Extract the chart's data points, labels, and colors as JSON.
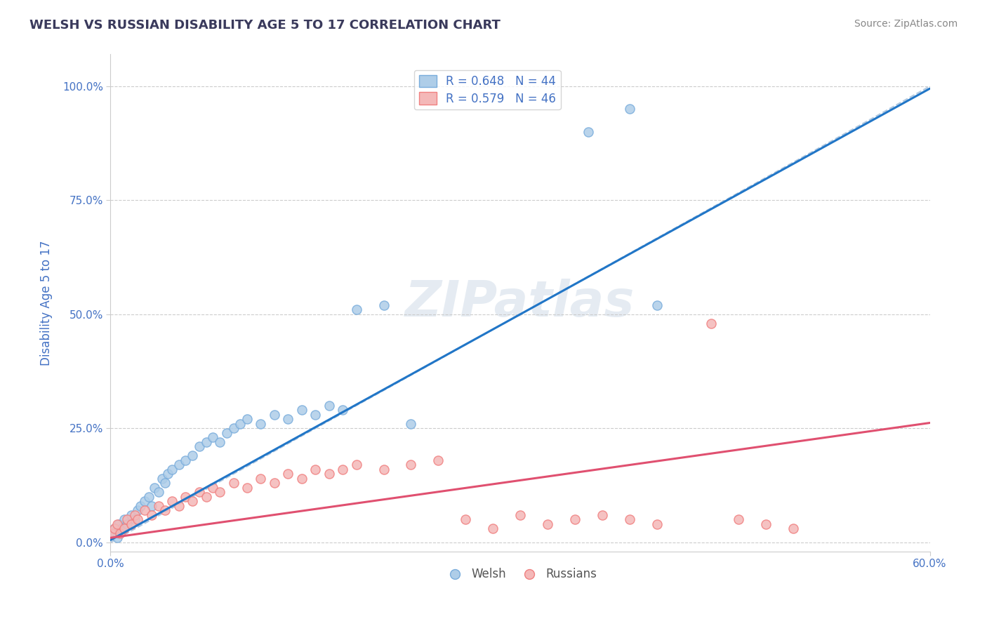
{
  "title": "WELSH VS RUSSIAN DISABILITY AGE 5 TO 17 CORRELATION CHART",
  "source": "Source: ZipAtlas.com",
  "ylabel": "Disability Age 5 to 17",
  "y_tick_labels": [
    "0.0%",
    "25.0%",
    "50.0%",
    "75.0%",
    "100.0%"
  ],
  "y_tick_values": [
    0,
    25,
    50,
    75,
    100
  ],
  "x_min": 0,
  "x_max": 60,
  "y_min": -2,
  "y_max": 107,
  "welsh_color": "#7aaddc",
  "welsh_fill": "#aecde8",
  "russian_color": "#f08080",
  "russian_fill": "#f4b8b8",
  "regression_welsh_color": "#2176c7",
  "regression_russian_color": "#e05070",
  "diagonal_color": "#b0c8e0",
  "text_color": "#4472c4",
  "legend_welsh_label": "R = 0.648   N = 44",
  "legend_russian_label": "R = 0.579   N = 46",
  "watermark": "ZIPatlas",
  "welsh_slope": 1.65,
  "welsh_intercept": 0.5,
  "russian_slope": 0.42,
  "russian_intercept": 1.0,
  "welsh_points_x": [
    0.2,
    0.3,
    0.5,
    0.6,
    0.8,
    1.0,
    1.2,
    1.5,
    1.8,
    2.0,
    2.2,
    2.5,
    2.8,
    3.0,
    3.2,
    3.5,
    3.8,
    4.0,
    4.2,
    4.5,
    5.0,
    5.5,
    6.0,
    6.5,
    7.0,
    7.5,
    8.0,
    8.5,
    9.0,
    9.5,
    10.0,
    11.0,
    12.0,
    13.0,
    14.0,
    15.0,
    16.0,
    17.0,
    18.0,
    20.0,
    22.0,
    35.0,
    38.0,
    40.0
  ],
  "welsh_points_y": [
    2,
    3,
    1,
    4,
    3,
    5,
    4,
    6,
    5,
    7,
    8,
    9,
    10,
    8,
    12,
    11,
    14,
    13,
    15,
    16,
    17,
    18,
    19,
    21,
    22,
    23,
    22,
    24,
    25,
    26,
    27,
    26,
    28,
    27,
    29,
    28,
    30,
    29,
    51,
    52,
    26,
    90,
    95,
    52
  ],
  "russian_points_x": [
    0.1,
    0.3,
    0.5,
    0.7,
    1.0,
    1.2,
    1.5,
    1.8,
    2.0,
    2.5,
    3.0,
    3.5,
    4.0,
    4.5,
    5.0,
    5.5,
    6.0,
    6.5,
    7.0,
    7.5,
    8.0,
    9.0,
    10.0,
    11.0,
    12.0,
    13.0,
    14.0,
    15.0,
    16.0,
    17.0,
    18.0,
    20.0,
    22.0,
    24.0,
    26.0,
    28.0,
    30.0,
    32.0,
    34.0,
    36.0,
    38.0,
    40.0,
    44.0,
    46.0,
    48.0,
    50.0
  ],
  "russian_points_y": [
    2,
    3,
    4,
    2,
    3,
    5,
    4,
    6,
    5,
    7,
    6,
    8,
    7,
    9,
    8,
    10,
    9,
    11,
    10,
    12,
    11,
    13,
    12,
    14,
    13,
    15,
    14,
    16,
    15,
    16,
    17,
    16,
    17,
    18,
    5,
    3,
    6,
    4,
    5,
    6,
    5,
    4,
    48,
    5,
    4,
    3
  ]
}
